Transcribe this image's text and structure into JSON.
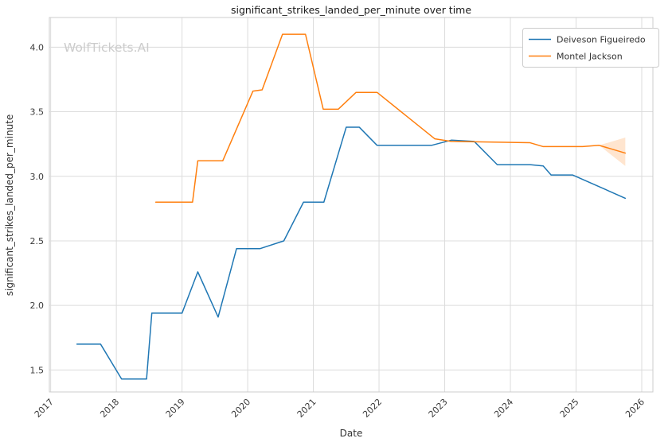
{
  "watermark": "WolfTickets.AI",
  "chart_data": {
    "type": "line",
    "title": "significant_strikes_landed_per_minute over time",
    "xlabel": "Date",
    "ylabel": "significant_strikes_landed_per_minute",
    "grid": true,
    "legend_position": "upper right",
    "xlim": [
      2016.98,
      2026.17
    ],
    "ylim": [
      1.33,
      4.23
    ],
    "x_tick_values": [
      2017,
      2018,
      2019,
      2020,
      2021,
      2022,
      2023,
      2024,
      2025,
      2026
    ],
    "x_tick_labels": [
      "2017",
      "2018",
      "2019",
      "2020",
      "2021",
      "2022",
      "2023",
      "2024",
      "2025",
      "2026"
    ],
    "y_tick_values": [
      1.5,
      2.0,
      2.5,
      3.0,
      3.5,
      4.0
    ],
    "y_tick_labels": [
      "1.5",
      "2.0",
      "2.5",
      "3.0",
      "3.5",
      "4.0"
    ],
    "colors": {
      "blue": "#1f77b4",
      "orange": "#ff7f0e",
      "grid": "#dcdcdc",
      "spine": "#cccccc",
      "text": "#333333",
      "watermark": "#cccccc"
    },
    "series": [
      {
        "name": "Deiveson Figueiredo",
        "color": "#1f77b4",
        "points": [
          [
            2017.4,
            1.7
          ],
          [
            2017.76,
            1.7
          ],
          [
            2018.08,
            1.43
          ],
          [
            2018.46,
            1.43
          ],
          [
            2018.54,
            1.94
          ],
          [
            2019.0,
            1.94
          ],
          [
            2019.24,
            2.26
          ],
          [
            2019.55,
            1.91
          ],
          [
            2019.83,
            2.44
          ],
          [
            2020.19,
            2.44
          ],
          [
            2020.55,
            2.5
          ],
          [
            2020.85,
            2.8
          ],
          [
            2021.16,
            2.8
          ],
          [
            2021.5,
            3.38
          ],
          [
            2021.7,
            3.38
          ],
          [
            2021.97,
            3.24
          ],
          [
            2022.8,
            3.24
          ],
          [
            2023.1,
            3.28
          ],
          [
            2023.45,
            3.27
          ],
          [
            2023.8,
            3.09
          ],
          [
            2024.3,
            3.09
          ],
          [
            2024.5,
            3.08
          ],
          [
            2024.62,
            3.01
          ],
          [
            2024.95,
            3.01
          ],
          [
            2025.75,
            2.83
          ]
        ]
      },
      {
        "name": "Montel Jackson",
        "color": "#ff7f0e",
        "points": [
          [
            2018.6,
            2.8
          ],
          [
            2019.16,
            2.8
          ],
          [
            2019.24,
            3.12
          ],
          [
            2019.62,
            3.12
          ],
          [
            2020.08,
            3.66
          ],
          [
            2020.22,
            3.67
          ],
          [
            2020.53,
            4.1
          ],
          [
            2020.88,
            4.1
          ],
          [
            2021.15,
            3.52
          ],
          [
            2021.38,
            3.52
          ],
          [
            2021.65,
            3.65
          ],
          [
            2021.97,
            3.65
          ],
          [
            2022.85,
            3.29
          ],
          [
            2023.1,
            3.27
          ],
          [
            2024.3,
            3.26
          ],
          [
            2024.5,
            3.23
          ],
          [
            2025.1,
            3.23
          ],
          [
            2025.35,
            3.24
          ],
          [
            2025.75,
            3.18
          ]
        ],
        "band": {
          "upper": [
            [
              2025.35,
              3.24
            ],
            [
              2025.75,
              3.3
            ]
          ],
          "lower": [
            [
              2025.35,
              3.24
            ],
            [
              2025.75,
              3.08
            ]
          ],
          "opacity": 0.2
        }
      }
    ]
  }
}
